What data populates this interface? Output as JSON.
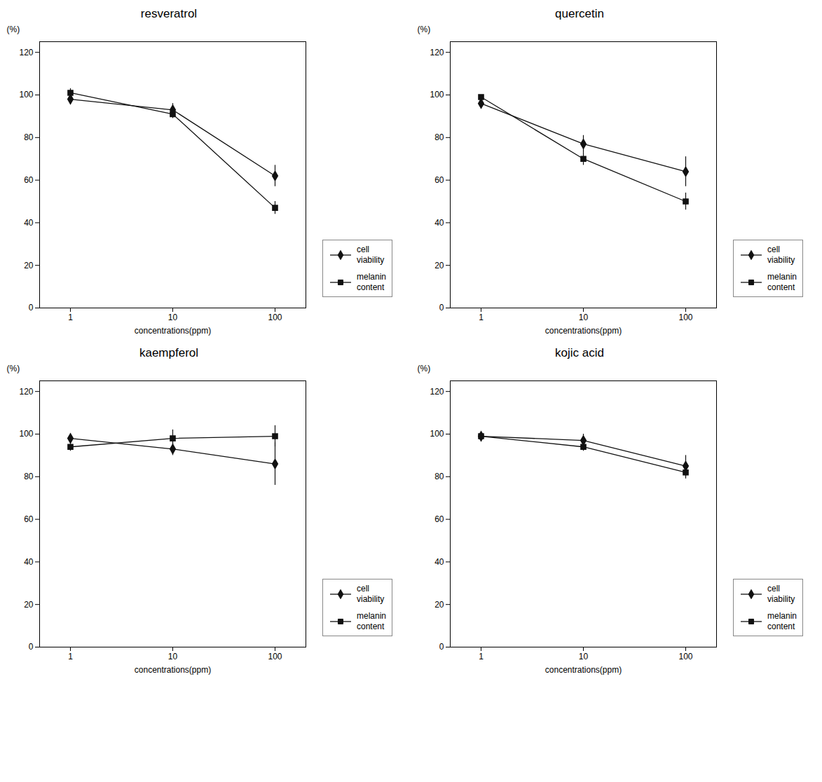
{
  "chart_data": [
    {
      "type": "line",
      "title": "resveratrol",
      "categories": [
        "1",
        "10",
        "100"
      ],
      "series": [
        {
          "name": "cell\nviability",
          "color": "#111111",
          "marker": "diamond",
          "values": [
            98,
            93,
            62
          ],
          "errors": [
            2,
            3,
            5
          ]
        },
        {
          "name": "melanin\ncontent",
          "color": "#111111",
          "marker": "square",
          "values": [
            101,
            91,
            47
          ],
          "errors": [
            2,
            2,
            3
          ]
        }
      ],
      "xlabel": "concentrations(ppm)",
      "ylabel": "(%)",
      "ylim": [
        0,
        125
      ],
      "yticks": [
        0,
        20,
        40,
        60,
        80,
        100,
        120
      ],
      "grid": false,
      "legend": "lower right"
    },
    {
      "type": "line",
      "title": "quercetin",
      "categories": [
        "1",
        "10",
        "100"
      ],
      "series": [
        {
          "name": "cell\nviability",
          "color": "#111111",
          "marker": "diamond",
          "values": [
            96,
            77,
            64
          ],
          "errors": [
            2,
            4,
            7
          ]
        },
        {
          "name": "melanin\ncontent",
          "color": "#111111",
          "marker": "square",
          "values": [
            99,
            70,
            50
          ],
          "errors": [
            1,
            3,
            4
          ]
        }
      ],
      "xlabel": "concentrations(ppm)",
      "ylabel": "(%)",
      "ylim": [
        0,
        125
      ],
      "yticks": [
        0,
        20,
        40,
        60,
        80,
        100,
        120
      ],
      "grid": false,
      "legend": "lower right"
    },
    {
      "type": "line",
      "title": "kaempferol",
      "categories": [
        "1",
        "10",
        "100"
      ],
      "series": [
        {
          "name": "cell\nviability",
          "color": "#111111",
          "marker": "diamond",
          "values": [
            98,
            93,
            86
          ],
          "errors": [
            2,
            3,
            10
          ]
        },
        {
          "name": "melanin\ncontent",
          "color": "#111111",
          "marker": "square",
          "values": [
            94,
            98,
            99
          ],
          "errors": [
            2,
            4,
            5
          ]
        }
      ],
      "xlabel": "concentrations(ppm)",
      "ylabel": "(%)",
      "ylim": [
        0,
        125
      ],
      "yticks": [
        0,
        20,
        40,
        60,
        80,
        100,
        120
      ],
      "grid": false,
      "legend": "lower right"
    },
    {
      "type": "line",
      "title": "kojic acid",
      "categories": [
        "1",
        "10",
        "100"
      ],
      "series": [
        {
          "name": "cell\nviability",
          "color": "#111111",
          "marker": "diamond",
          "values": [
            99,
            97,
            85
          ],
          "errors": [
            1,
            3,
            5
          ]
        },
        {
          "name": "melanin\ncontent",
          "color": "#111111",
          "marker": "square",
          "values": [
            99,
            94,
            82
          ],
          "errors": [
            1,
            2,
            3
          ]
        }
      ],
      "xlabel": "concentrations(ppm)",
      "ylabel": "(%)",
      "ylim": [
        0,
        125
      ],
      "yticks": [
        0,
        20,
        40,
        60,
        80,
        100,
        120
      ],
      "grid": false,
      "legend": "lower right"
    }
  ]
}
